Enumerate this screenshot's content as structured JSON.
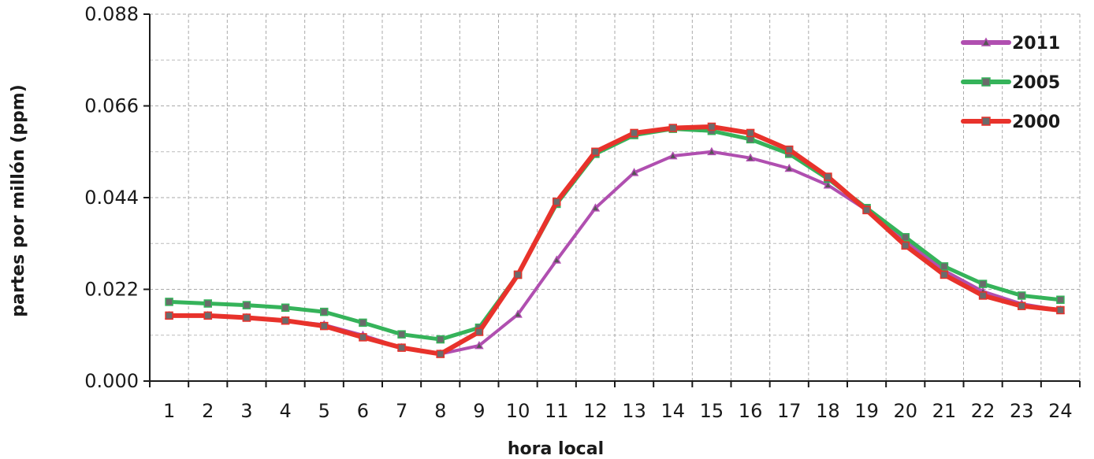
{
  "chart_data": {
    "type": "line",
    "title": "",
    "xlabel": "hora local",
    "ylabel": "partes por millón (ppm)",
    "x": [
      1,
      2,
      3,
      4,
      5,
      6,
      7,
      8,
      9,
      10,
      11,
      12,
      13,
      14,
      15,
      16,
      17,
      18,
      19,
      20,
      21,
      22,
      23,
      24
    ],
    "xtick_labels": [
      "1",
      "2",
      "3",
      "4",
      "5",
      "6",
      "7",
      "8",
      "9",
      "10",
      "11",
      "12",
      "13",
      "14",
      "15",
      "16",
      "17",
      "18",
      "19",
      "20",
      "21",
      "22",
      "23",
      "24"
    ],
    "ylim": [
      0,
      0.088
    ],
    "yticks": [
      0.0,
      0.022,
      0.044,
      0.066,
      0.088
    ],
    "ytick_labels": [
      "0.000",
      "0.022",
      "0.044",
      "0.066",
      "0.088"
    ],
    "grid": true,
    "legend_position": "top-right",
    "series": [
      {
        "name": "2011",
        "color": "#b04fb0",
        "marker": "triangle",
        "values": [
          0.0157,
          0.0157,
          0.0152,
          0.0145,
          0.0135,
          0.011,
          0.008,
          0.0065,
          0.0085,
          0.016,
          0.029,
          0.0415,
          0.05,
          0.054,
          0.055,
          0.0535,
          0.051,
          0.047,
          0.041,
          0.0335,
          0.0265,
          0.0215,
          0.0185,
          0.017
        ]
      },
      {
        "name": "2005",
        "color": "#35b35a",
        "marker": "square",
        "values": [
          0.019,
          0.0186,
          0.0182,
          0.0176,
          0.0166,
          0.014,
          0.0112,
          0.01,
          0.0128,
          0.0255,
          0.0425,
          0.0545,
          0.059,
          0.0605,
          0.06,
          0.058,
          0.0545,
          0.0485,
          0.0415,
          0.0345,
          0.0275,
          0.0233,
          0.0205,
          0.0195
        ]
      },
      {
        "name": "2000",
        "color": "#e8322b",
        "marker": "square",
        "values": [
          0.0157,
          0.0157,
          0.0152,
          0.0145,
          0.0132,
          0.0105,
          0.008,
          0.0065,
          0.0118,
          0.0255,
          0.043,
          0.055,
          0.0595,
          0.0607,
          0.061,
          0.0595,
          0.0555,
          0.049,
          0.041,
          0.0325,
          0.0255,
          0.0205,
          0.018,
          0.017
        ]
      }
    ]
  }
}
